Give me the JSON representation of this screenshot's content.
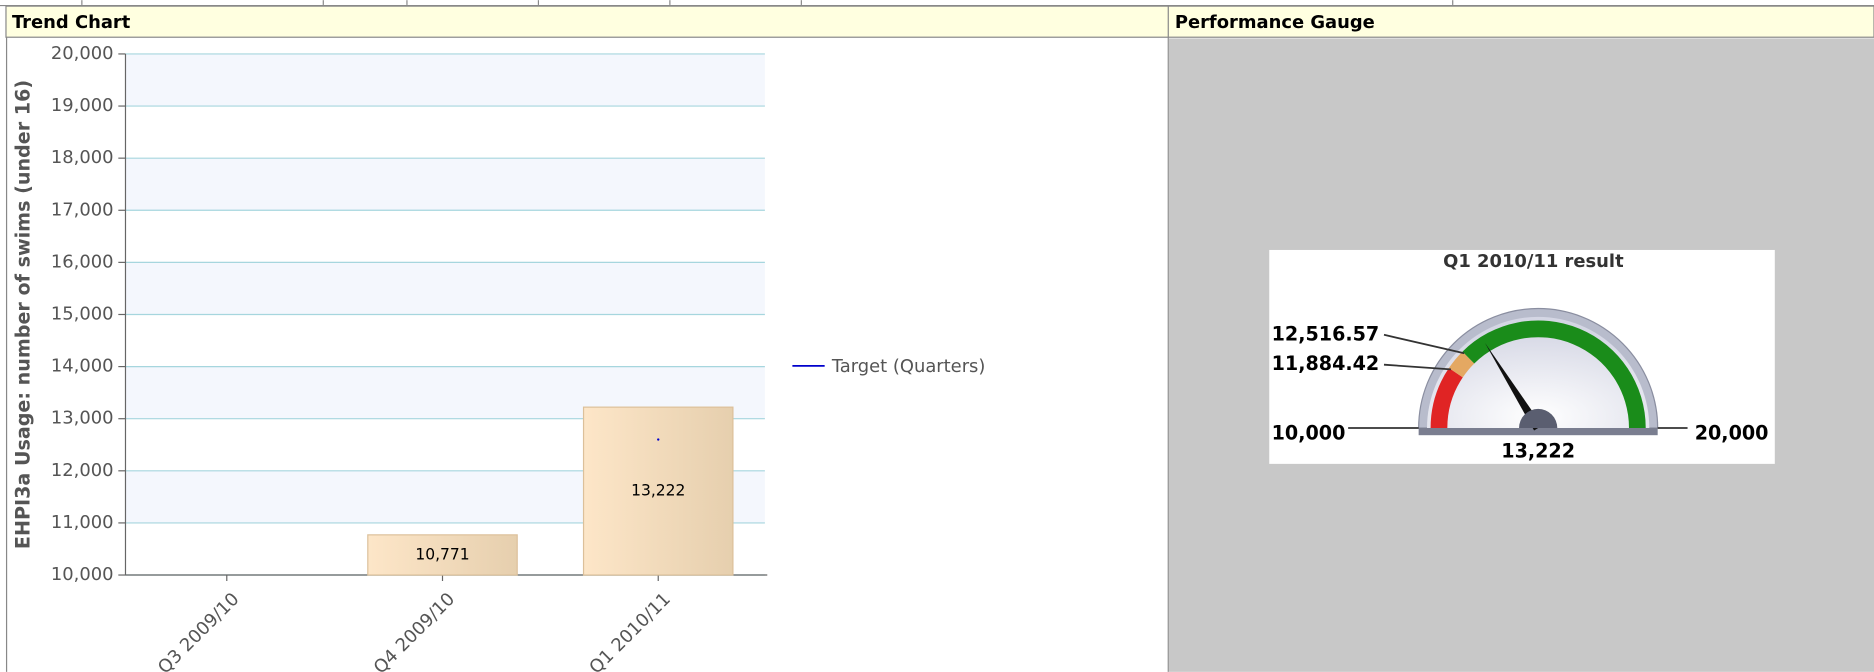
{
  "panels": [
    {
      "title": "Trend Chart"
    },
    {
      "title": "Performance Gauge"
    }
  ],
  "chart_data": [
    {
      "type": "bar",
      "y_label": "EHPI3a Usage: number of swims (under 16)",
      "categories": [
        "Q3 2009/10",
        "Q4 2009/10",
        "Q1 2010/11"
      ],
      "values": [
        null,
        10771,
        13222
      ],
      "value_labels": [
        null,
        "10,771",
        "13,222"
      ],
      "color": "#f6dcbc",
      "target": {
        "name": "Target (Quarters)",
        "color": "#0000cc",
        "values": [
          null,
          null,
          12600
        ]
      },
      "ylim": [
        10000,
        20000
      ],
      "yticks": [
        {
          "value": 10000,
          "label": "10,000"
        },
        {
          "value": 11000,
          "label": "11,000"
        },
        {
          "value": 12000,
          "label": "12,000"
        },
        {
          "value": 13000,
          "label": "13,000"
        },
        {
          "value": 14000,
          "label": "14,000"
        },
        {
          "value": 15000,
          "label": "15,000"
        },
        {
          "value": 16000,
          "label": "16,000"
        },
        {
          "value": 17000,
          "label": "17,000"
        },
        {
          "value": 18000,
          "label": "18,000"
        },
        {
          "value": 19000,
          "label": "19,000"
        },
        {
          "value": 20000,
          "label": "20,000"
        }
      ],
      "grid": true
    },
    {
      "type": "gauge",
      "title": "Q1 2010/11 result",
      "value": 13222,
      "value_label": "13,222",
      "ylim": [
        10000,
        20000
      ],
      "yticks": [
        {
          "value": 10000,
          "label": "10,000"
        },
        {
          "value": 20000,
          "label": "20,000"
        }
      ],
      "thresholds": [
        {
          "value": 11884.42,
          "label": "11,884.42"
        },
        {
          "value": 12516.57,
          "label": "12,516.57"
        }
      ],
      "band_colors": [
        "#e02424",
        "#e4a862",
        "#1a8c1a"
      ]
    }
  ]
}
